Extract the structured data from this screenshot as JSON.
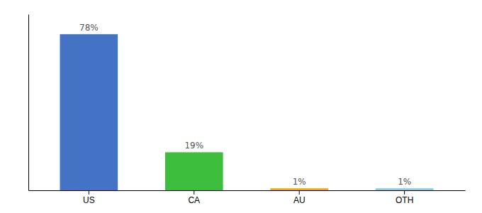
{
  "chart_data": {
    "type": "bar",
    "categories": [
      "US",
      "CA",
      "AU",
      "OTH"
    ],
    "values": [
      78,
      19,
      1,
      1
    ],
    "colors": [
      "#4472C4",
      "#3DBF3D",
      "#FFA500",
      "#87CEEB"
    ],
    "value_labels": [
      "78%",
      "19%",
      "1%",
      "1%"
    ],
    "data_labels": true,
    "ylim": [
      0,
      88
    ],
    "tick_labels": "x",
    "grid": false
  }
}
